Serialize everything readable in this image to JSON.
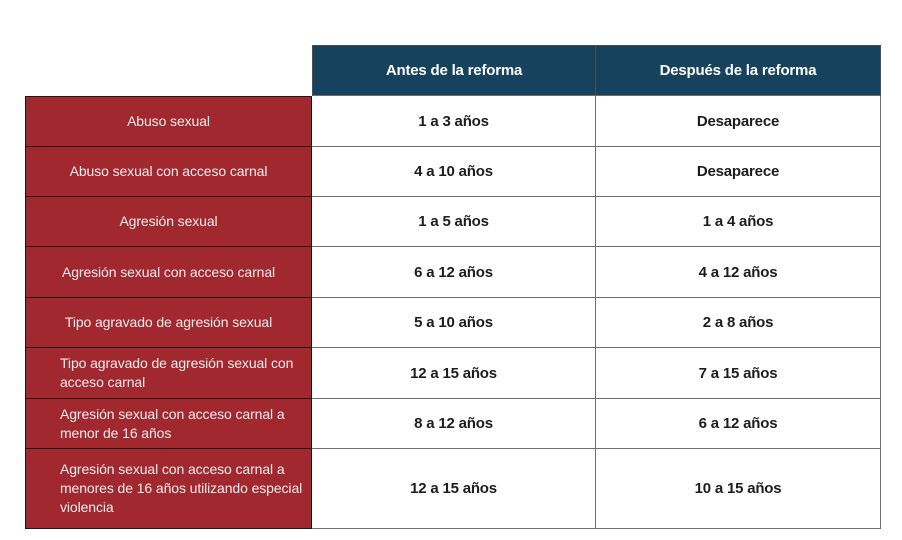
{
  "chart_data": {
    "type": "table",
    "column_headers": [
      "Antes de la reforma",
      "Después de la reforma"
    ],
    "rows": [
      {
        "label": "Abuso sexual",
        "antes": "1 a 3 años",
        "despues": "Desaparece",
        "align": "center"
      },
      {
        "label": "Abuso sexual con acceso carnal",
        "antes": "4 a 10 años",
        "despues": "Desaparece",
        "align": "center"
      },
      {
        "label": "Agresión sexual",
        "antes": "1 a 5 años",
        "despues": "1 a 4 años",
        "align": "center"
      },
      {
        "label": "Agresión sexual con acceso carnal",
        "antes": "6 a 12 años",
        "despues": "4 a 12 años",
        "align": "center"
      },
      {
        "label": "Tipo agravado de agresión sexual",
        "antes": "5 a 10 años",
        "despues": "2 a 8 años",
        "align": "center"
      },
      {
        "label": "Tipo agravado de agresión sexual con acceso carnal",
        "antes": "12 a 15 años",
        "despues": "7 a 15 años",
        "align": "left"
      },
      {
        "label": "Agresión sexual con acceso carnal a menor de 16 años",
        "antes": "8 a 12 años",
        "despues": "6 a 12 años",
        "align": "left"
      },
      {
        "label": "Agresión sexual con acceso carnal a menores de 16 años utilizando especial violencia",
        "antes": "12 a 15 años",
        "despues": "10 a 15 años",
        "align": "left"
      }
    ]
  },
  "colors": {
    "header_bg": "#16425E",
    "header_text": "#FFFFFF",
    "row_header_bg": "#A1282F",
    "row_header_text": "#F5ECED",
    "value_text": "#1D1D1D",
    "grid_line": "#6E6E6E",
    "dark_line": "#201314"
  }
}
